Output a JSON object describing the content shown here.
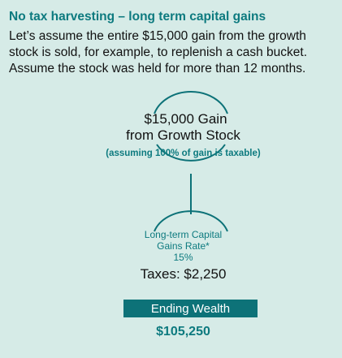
{
  "header": {
    "title": "No tax harvesting – long term capital gains",
    "intro_lines": [
      "Let’s assume the entire $15,000 gain from the growth",
      "stock is sold, for example, to replenish a cash bucket.",
      "Assume the stock was held for more than 12 months."
    ]
  },
  "gain_node": {
    "line1": "$15,000 Gain",
    "line2": "from Growth Stock",
    "note": "(assuming 100% of gain is taxable)"
  },
  "rate_node": {
    "label_line1": "Long-term Capital",
    "label_line2": "Gains Rate*",
    "label_line3": "15%",
    "taxes": "Taxes: $2,250"
  },
  "ending": {
    "label": "Ending Wealth",
    "value": "$105,250"
  },
  "colors": {
    "background": "#d6ebe7",
    "accent": "#0d7a7f",
    "box": "#0d7278"
  }
}
